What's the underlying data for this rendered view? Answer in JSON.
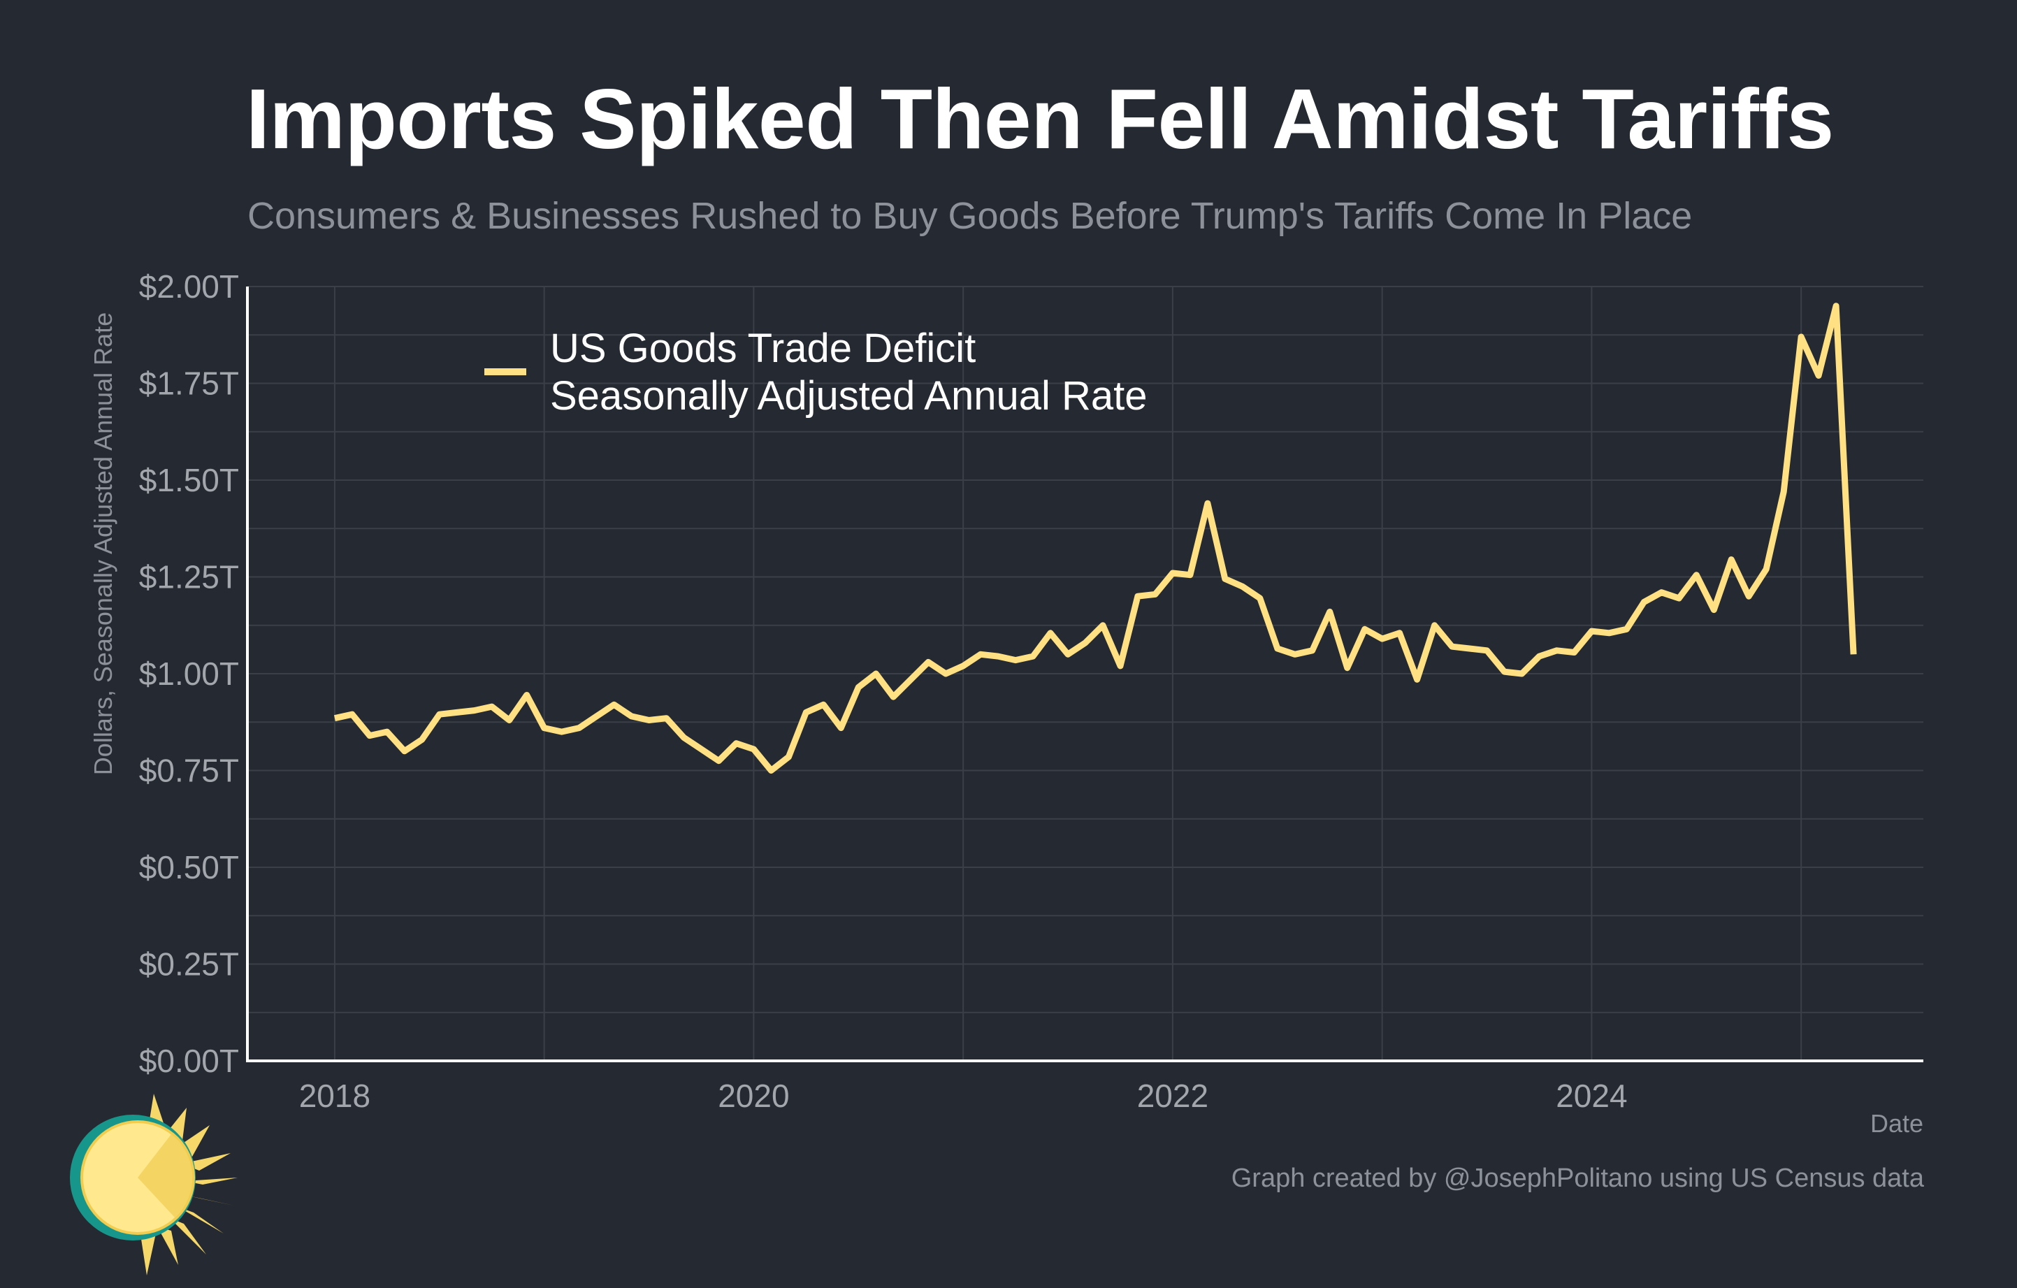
{
  "title": "Imports Spiked Then Fell Amidst Tariffs",
  "subtitle": "Consumers & Businesses Rushed to Buy Goods Before Trump's Tariffs Come In Place",
  "credit": "Graph created by @JosephPolitano using US Census data",
  "colors": {
    "background": "#252931",
    "line": "#ffe083",
    "grid": "#3b3f47",
    "axis": "#ffffff",
    "muted_text": "#8d929a"
  },
  "logo_icon": "sun-icon",
  "chart_data": {
    "type": "line",
    "xlabel": "Date",
    "ylabel": "Dollars, Seasonally Adjusted Annual Rate",
    "ylim": [
      0,
      2.0
    ],
    "xlim": [
      "2017-08",
      "2025-08"
    ],
    "y_ticks": [
      0,
      0.25,
      0.5,
      0.75,
      1.0,
      1.25,
      1.5,
      1.75,
      2.0
    ],
    "y_tick_labels": [
      "$0.00T",
      "$0.25T",
      "$0.50T",
      "$0.75T",
      "$1.00T",
      "$1.25T",
      "$1.50T",
      "$1.75T",
      "$2.00T"
    ],
    "x_ticks": [
      "2018-01",
      "2020-01",
      "2022-01",
      "2024-01"
    ],
    "x_tick_labels": [
      "2018",
      "2020",
      "2022",
      "2024"
    ],
    "grid": true,
    "legend_position": "top-left",
    "series": [
      {
        "name": "US Goods Trade Deficit\nSeasonally Adjusted Annual Rate",
        "color": "#ffe083",
        "x": [
          "2018-01",
          "2018-02",
          "2018-03",
          "2018-04",
          "2018-05",
          "2018-06",
          "2018-07",
          "2018-08",
          "2018-09",
          "2018-10",
          "2018-11",
          "2018-12",
          "2019-01",
          "2019-02",
          "2019-03",
          "2019-04",
          "2019-05",
          "2019-06",
          "2019-07",
          "2019-08",
          "2019-09",
          "2019-10",
          "2019-11",
          "2019-12",
          "2020-01",
          "2020-02",
          "2020-03",
          "2020-04",
          "2020-05",
          "2020-06",
          "2020-07",
          "2020-08",
          "2020-09",
          "2020-10",
          "2020-11",
          "2020-12",
          "2021-01",
          "2021-02",
          "2021-03",
          "2021-04",
          "2021-05",
          "2021-06",
          "2021-07",
          "2021-08",
          "2021-09",
          "2021-10",
          "2021-11",
          "2021-12",
          "2022-01",
          "2022-02",
          "2022-03",
          "2022-04",
          "2022-05",
          "2022-06",
          "2022-07",
          "2022-08",
          "2022-09",
          "2022-10",
          "2022-11",
          "2022-12",
          "2023-01",
          "2023-02",
          "2023-03",
          "2023-04",
          "2023-05",
          "2023-06",
          "2023-07",
          "2023-08",
          "2023-09",
          "2023-10",
          "2023-11",
          "2023-12",
          "2024-01",
          "2024-02",
          "2024-03",
          "2024-04",
          "2024-05",
          "2024-06",
          "2024-07",
          "2024-08",
          "2024-09",
          "2024-10",
          "2024-11",
          "2024-12",
          "2025-01",
          "2025-02",
          "2025-03",
          "2025-04"
        ],
        "values": [
          0.885,
          0.895,
          0.84,
          0.85,
          0.8,
          0.83,
          0.895,
          0.9,
          0.905,
          0.915,
          0.88,
          0.945,
          0.86,
          0.85,
          0.86,
          0.89,
          0.92,
          0.89,
          0.88,
          0.885,
          0.835,
          0.805,
          0.775,
          0.82,
          0.805,
          0.75,
          0.785,
          0.9,
          0.92,
          0.86,
          0.965,
          1.0,
          0.94,
          0.985,
          1.03,
          1.0,
          1.02,
          1.05,
          1.045,
          1.035,
          1.045,
          1.105,
          1.05,
          1.08,
          1.125,
          1.02,
          1.2,
          1.205,
          1.26,
          1.255,
          1.44,
          1.245,
          1.225,
          1.195,
          1.065,
          1.05,
          1.06,
          1.16,
          1.015,
          1.115,
          1.09,
          1.105,
          0.985,
          1.125,
          1.07,
          1.065,
          1.06,
          1.005,
          1.0,
          1.045,
          1.06,
          1.055,
          1.11,
          1.105,
          1.115,
          1.185,
          1.21,
          1.195,
          1.255,
          1.165,
          1.295,
          1.2,
          1.27,
          1.47,
          1.87,
          1.77,
          1.95,
          1.05
        ]
      }
    ]
  }
}
